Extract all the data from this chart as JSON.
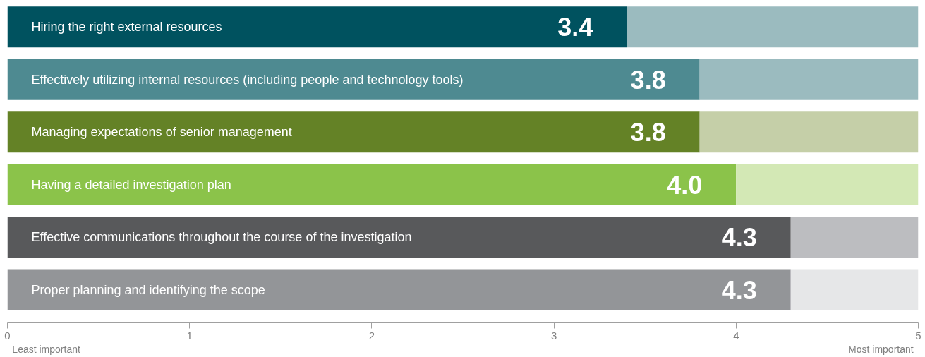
{
  "chart_data": {
    "type": "bar",
    "orientation": "horizontal",
    "stacked": true,
    "categories": [
      "Hiring the right external resources",
      "Effectively utilizing internal resources (including people and technology tools)",
      "Managing expectations of senior management",
      "Having a detailed investigation plan",
      "Effective communications throughout the course of the investigation",
      "Proper planning and identifying the scope"
    ],
    "series": [
      {
        "colors": [
          "#00525f",
          "#4e8a91",
          "#648226",
          "#8bc34a",
          "#58595b",
          "#939598"
        ],
        "values": [
          3.4,
          3.8,
          3.8,
          4.0,
          4.3,
          4.3
        ],
        "value_labels": [
          "3.4",
          "3.8",
          "3.8",
          "4.0",
          "4.3",
          "4.3"
        ]
      },
      {
        "colors": [
          "#9bbbbf",
          "#9bbbbf",
          "#c5cfa8",
          "#d3e8b5",
          "#bcbdc0",
          "#e6e7e8"
        ],
        "values": [
          1.6,
          1.2,
          1.2,
          1.0,
          0.7,
          0.7
        ]
      }
    ],
    "xlim": [
      0,
      5
    ],
    "xticks": [
      0,
      1,
      2,
      3,
      4,
      5
    ],
    "grid": false,
    "annotations": [
      "Least important",
      "Most important"
    ]
  }
}
